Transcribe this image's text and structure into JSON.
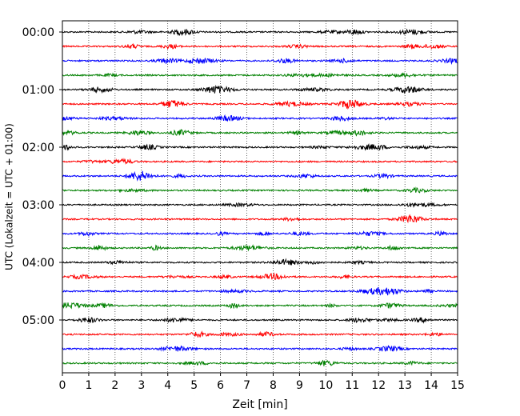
{
  "chart_data": {
    "type": "line",
    "title": "",
    "xlabel": "Zeit  [min]",
    "ylabel": "UTC (Lokalzeit = UTC + 01:00)",
    "xlim": [
      0,
      15
    ],
    "x_ticks": [
      "0",
      "1",
      "2",
      "3",
      "4",
      "5",
      "6",
      "7",
      "8",
      "9",
      "10",
      "11",
      "12",
      "13",
      "14",
      "15"
    ],
    "y_ticks": [
      {
        "label": "00:00",
        "trace": 0
      },
      {
        "label": "01:00",
        "trace": 4
      },
      {
        "label": "02:00",
        "trace": 8
      },
      {
        "label": "03:00",
        "trace": 12
      },
      {
        "label": "04:00",
        "trace": 16
      },
      {
        "label": "05:00",
        "trace": 20
      }
    ],
    "grid": "vertical-dotted",
    "trace_count": 24,
    "trace_minutes": 15,
    "color_cycle": [
      "#000000",
      "#ff0000",
      "#0000ff",
      "#008000"
    ]
  }
}
